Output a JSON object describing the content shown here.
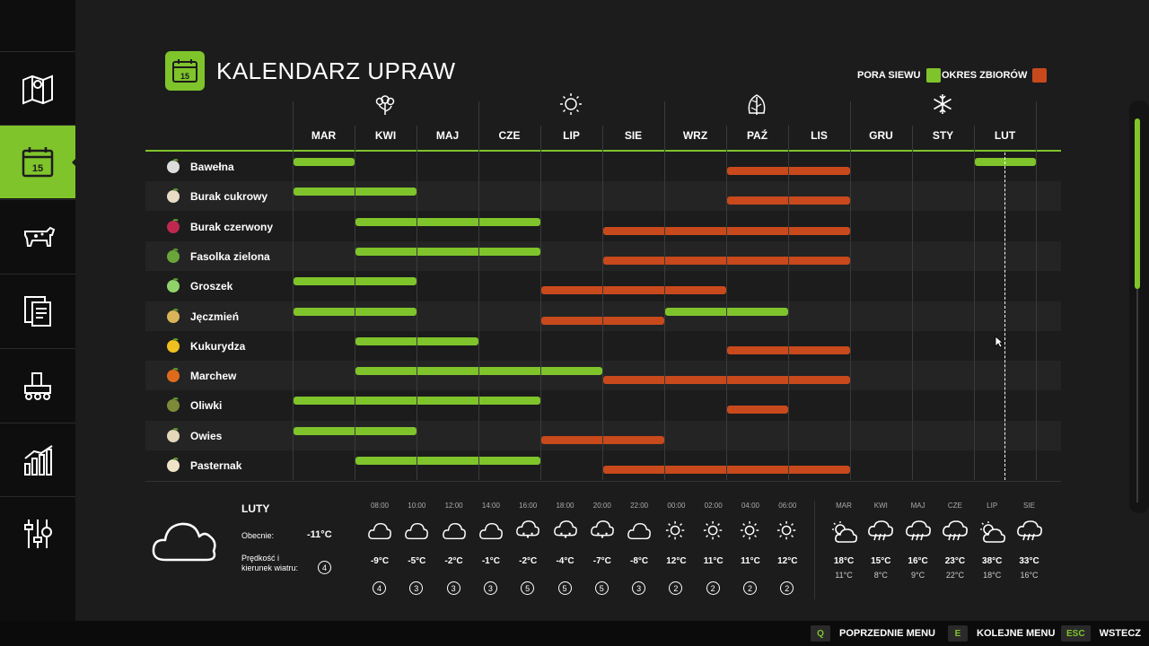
{
  "title": "KALENDARZ UPRAW",
  "legend": {
    "sow_label": "PORA SIEWU",
    "harvest_label": "OKRES ZBIORÓW",
    "sow_color": "#7fc42b",
    "harvest_color": "#c8491c"
  },
  "sidebar": [
    {
      "icon": "map-icon",
      "active": false
    },
    {
      "icon": "calendar-icon",
      "active": true
    },
    {
      "icon": "animals-icon",
      "active": false
    },
    {
      "icon": "contracts-icon",
      "active": false
    },
    {
      "icon": "production-icon",
      "active": false
    },
    {
      "icon": "statistics-icon",
      "active": false
    },
    {
      "icon": "settings-icon",
      "active": false
    }
  ],
  "months": [
    "MAR",
    "KWI",
    "MAJ",
    "CZE",
    "LIP",
    "SIE",
    "WRZ",
    "PAŹ",
    "LIS",
    "GRU",
    "STY",
    "LUT"
  ],
  "season_icons": [
    "spring-flower-icon",
    "summer-sun-icon",
    "autumn-leaf-icon",
    "winter-snowflake-icon"
  ],
  "crops": [
    {
      "name": "Bawełna",
      "icon": "cotton-icon",
      "sow": [
        [
          0,
          1
        ],
        [
          11,
          12
        ]
      ],
      "harvest": [
        [
          7,
          9
        ]
      ]
    },
    {
      "name": "Burak cukrowy",
      "icon": "sugar-beet-icon",
      "sow": [
        [
          0,
          2
        ]
      ],
      "harvest": [
        [
          7,
          9
        ]
      ]
    },
    {
      "name": "Burak czerwony",
      "icon": "red-beet-icon",
      "sow": [
        [
          1,
          4
        ]
      ],
      "harvest": [
        [
          5,
          9
        ]
      ]
    },
    {
      "name": "Fasolka zielona",
      "icon": "green-bean-icon",
      "sow": [
        [
          1,
          4
        ]
      ],
      "harvest": [
        [
          5,
          9
        ]
      ]
    },
    {
      "name": "Groszek",
      "icon": "pea-icon",
      "sow": [
        [
          0,
          2
        ]
      ],
      "harvest": [
        [
          4,
          7
        ]
      ]
    },
    {
      "name": "Jęczmień",
      "icon": "barley-icon",
      "sow": [
        [
          0,
          2
        ],
        [
          6,
          8
        ]
      ],
      "harvest": [
        [
          4,
          6
        ]
      ]
    },
    {
      "name": "Kukurydza",
      "icon": "corn-icon",
      "sow": [
        [
          1,
          3
        ]
      ],
      "harvest": [
        [
          7,
          9
        ]
      ]
    },
    {
      "name": "Marchew",
      "icon": "carrot-icon",
      "sow": [
        [
          1,
          5
        ]
      ],
      "harvest": [
        [
          5,
          9
        ]
      ]
    },
    {
      "name": "Oliwki",
      "icon": "olive-icon",
      "sow": [
        [
          0,
          4
        ]
      ],
      "harvest": [
        [
          7,
          8
        ]
      ]
    },
    {
      "name": "Owies",
      "icon": "oat-icon",
      "sow": [
        [
          0,
          2
        ]
      ],
      "harvest": [
        [
          4,
          6
        ]
      ]
    },
    {
      "name": "Pasternak",
      "icon": "parsnip-icon",
      "sow": [
        [
          1,
          4
        ]
      ],
      "harvest": [
        [
          5,
          9
        ]
      ]
    }
  ],
  "current_weather": {
    "month": "LUTY",
    "now_label": "Obecnie:",
    "now_temp": "-11°C",
    "wind_label_line1": "Prędkość i",
    "wind_label_line2": "kierunek wiatru:",
    "wind_value": "4"
  },
  "hourly": [
    {
      "time": "08:00",
      "icon": "cloud-icon",
      "temp": "-9°C",
      "wind": "4"
    },
    {
      "time": "10:00",
      "icon": "cloud-icon",
      "temp": "-5°C",
      "wind": "3"
    },
    {
      "time": "12:00",
      "icon": "cloud-icon",
      "temp": "-2°C",
      "wind": "3"
    },
    {
      "time": "14:00",
      "icon": "cloud-icon",
      "temp": "-1°C",
      "wind": "3"
    },
    {
      "time": "16:00",
      "icon": "snow-icon",
      "temp": "-2°C",
      "wind": "5"
    },
    {
      "time": "18:00",
      "icon": "snow-icon",
      "temp": "-4°C",
      "wind": "5"
    },
    {
      "time": "20:00",
      "icon": "snow-icon",
      "temp": "-7°C",
      "wind": "5"
    },
    {
      "time": "22:00",
      "icon": "cloud-icon",
      "temp": "-8°C",
      "wind": "3"
    },
    {
      "time": "00:00",
      "icon": "sun-icon",
      "temp": "12°C",
      "wind": "2"
    },
    {
      "time": "02:00",
      "icon": "sun-icon",
      "temp": "11°C",
      "wind": "2"
    },
    {
      "time": "04:00",
      "icon": "sun-icon",
      "temp": "11°C",
      "wind": "2"
    },
    {
      "time": "06:00",
      "icon": "sun-icon",
      "temp": "12°C",
      "wind": "2"
    }
  ],
  "monthly_forecast": [
    {
      "month": "MAR",
      "icon": "partly-cloudy-icon",
      "high": "18°C",
      "low": "11°C"
    },
    {
      "month": "KWI",
      "icon": "rain-icon",
      "high": "15°C",
      "low": "8°C"
    },
    {
      "month": "MAJ",
      "icon": "rain-icon",
      "high": "16°C",
      "low": "9°C"
    },
    {
      "month": "CZE",
      "icon": "rain-icon",
      "high": "23°C",
      "low": "22°C"
    },
    {
      "month": "LIP",
      "icon": "partly-cloudy-icon",
      "high": "38°C",
      "low": "18°C"
    },
    {
      "month": "SIE",
      "icon": "rain-icon",
      "high": "33°C",
      "low": "16°C"
    }
  ],
  "footer": [
    {
      "key": "Q",
      "label": "POPRZEDNIE MENU"
    },
    {
      "key": "E",
      "label": "KOLEJNE MENU"
    },
    {
      "key": "ESC",
      "label": "WSTECZ"
    }
  ]
}
